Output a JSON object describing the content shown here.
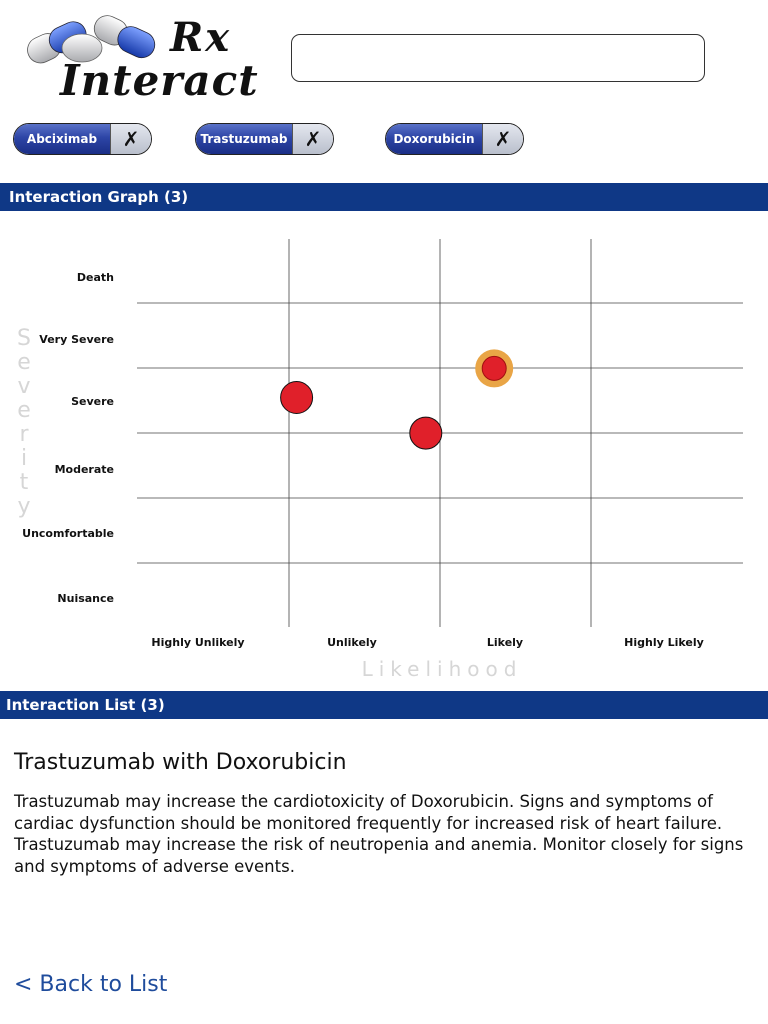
{
  "app": {
    "logo": {
      "line1": "Rx",
      "line2": "Interact"
    }
  },
  "search": {
    "value": "",
    "placeholder": ""
  },
  "drugs": [
    {
      "name": "Abciximab",
      "remove_icon": "x-icon"
    },
    {
      "name": "Trastuzumab",
      "remove_icon": "x-icon"
    },
    {
      "name": "Doxorubicin",
      "remove_icon": "x-icon"
    }
  ],
  "graph_section": {
    "title": "Interaction Graph (3)"
  },
  "list_section": {
    "title": "Interaction List (3)"
  },
  "colors": {
    "accent": "#0f3886",
    "marker": "#e0202a",
    "highlight": "#e9a546"
  },
  "chart_data": {
    "type": "scatter",
    "xlabel": "Likelihood",
    "ylabel": "Severity",
    "x_categories": [
      "Highly Unlikely",
      "Unlikely",
      "Likely",
      "Highly Likely"
    ],
    "y_categories": [
      "Nuisance",
      "Uncomfortable",
      "Moderate",
      "Severe",
      "Very Severe",
      "Death"
    ],
    "points": [
      {
        "x": 2.35,
        "y": 4.0,
        "selected": true
      },
      {
        "x": 1.05,
        "y": 3.55,
        "selected": false
      },
      {
        "x": 1.9,
        "y": 3.0,
        "selected": false
      }
    ],
    "xlim": [
      0,
      4
    ],
    "ylim": [
      0,
      6
    ],
    "grid": true
  },
  "detail": {
    "title": "Trastuzumab with Doxorubicin",
    "body": "Trastuzumab may increase the cardiotoxicity of Doxorubicin. Signs and symptoms of cardiac dysfunction should be monitored frequently for increased risk of heart failure. Trastuzumab may increase the risk of neutropenia and anemia. Monitor closely for signs and symptoms of adverse events."
  },
  "nav": {
    "back_label": "< Back to List"
  }
}
